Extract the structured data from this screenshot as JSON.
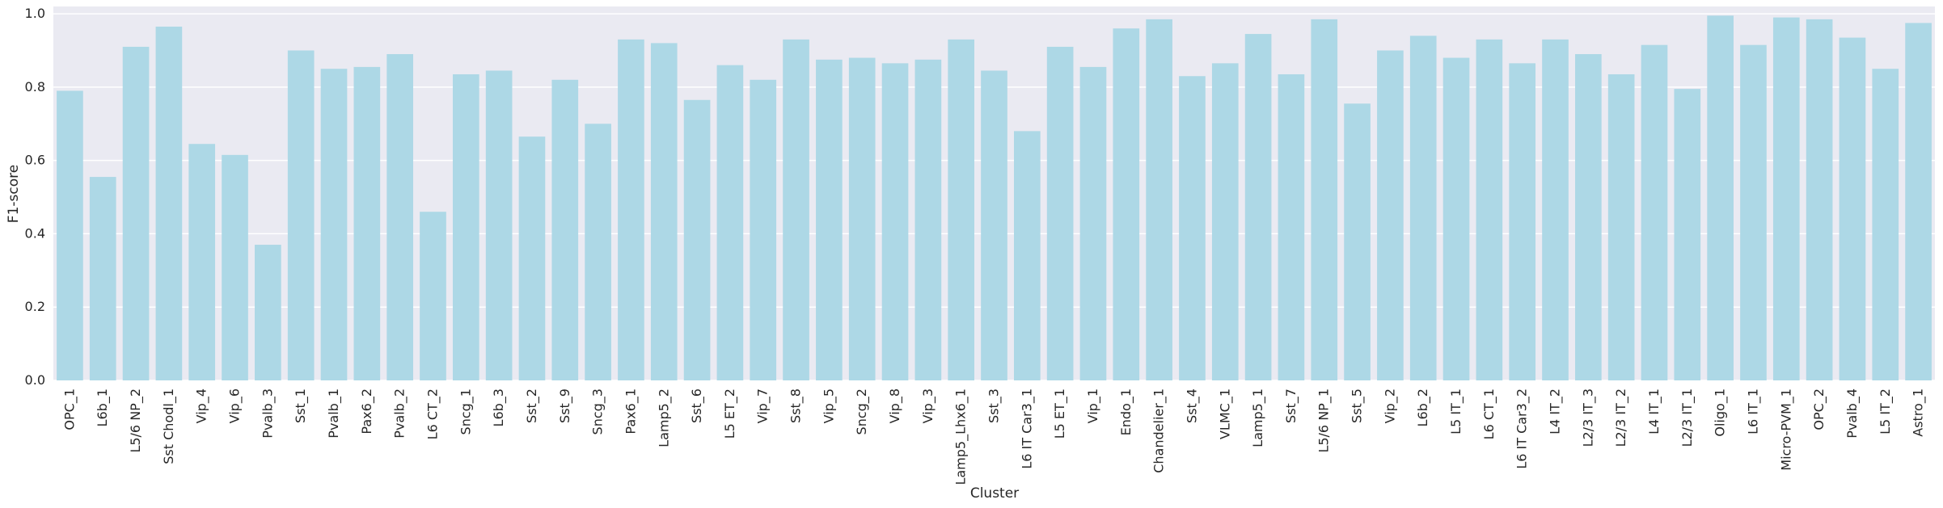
{
  "chart_data": {
    "type": "bar",
    "xlabel": "Cluster",
    "ylabel": "F1-score",
    "ylim": [
      0,
      1.02
    ],
    "yticks": [
      "0.0",
      "0.2",
      "0.4",
      "0.6",
      "0.8",
      "1.0"
    ],
    "grid": true,
    "bar_color": "#add8e6",
    "background_color": "#eaeaf2",
    "categories": [
      "OPC_1",
      "L6b_1",
      "L5/6 NP_2",
      "Sst Chodl_1",
      "Vip_4",
      "Vip_6",
      "Pvalb_3",
      "Sst_1",
      "Pvalb_1",
      "Pax6_2",
      "Pvalb_2",
      "L6 CT_2",
      "Sncg_1",
      "L6b_3",
      "Sst_2",
      "Sst_9",
      "Sncg_3",
      "Pax6_1",
      "Lamp5_2",
      "Sst_6",
      "L5 ET_2",
      "Vip_7",
      "Sst_8",
      "Vip_5",
      "Sncg_2",
      "Vip_8",
      "Vip_3",
      "Lamp5_Lhx6_1",
      "Sst_3",
      "L6 IT Car3_1",
      "L5 ET_1",
      "Vip_1",
      "Endo_1",
      "Chandelier_1",
      "Sst_4",
      "VLMC_1",
      "Lamp5_1",
      "Sst_7",
      "L5/6 NP_1",
      "Sst_5",
      "Vip_2",
      "L6b_2",
      "L5 IT_1",
      "L6 CT_1",
      "L6 IT Car3_2",
      "L4 IT_2",
      "L2/3 IT_3",
      "L2/3 IT_2",
      "L4 IT_1",
      "L2/3 IT_1",
      "Oligo_1",
      "L6 IT_1",
      "Micro-PVM_1",
      "OPC_2",
      "Pvalb_4",
      "L5 IT_2",
      "Astro_1"
    ],
    "values": [
      0.79,
      0.555,
      0.91,
      0.965,
      0.645,
      0.615,
      0.37,
      0.9,
      0.85,
      0.855,
      0.89,
      0.46,
      0.835,
      0.845,
      0.665,
      0.82,
      0.7,
      0.93,
      0.92,
      0.765,
      0.86,
      0.82,
      0.93,
      0.875,
      0.88,
      0.865,
      0.875,
      0.93,
      0.845,
      0.68,
      0.91,
      0.855,
      0.96,
      0.985,
      0.83,
      0.865,
      0.945,
      0.835,
      0.985,
      0.755,
      0.9,
      0.94,
      0.88,
      0.93,
      0.865,
      0.93,
      0.89,
      0.835,
      0.915,
      0.795,
      0.995,
      0.915,
      0.99,
      0.985,
      0.935,
      0.85,
      0.975
    ]
  }
}
